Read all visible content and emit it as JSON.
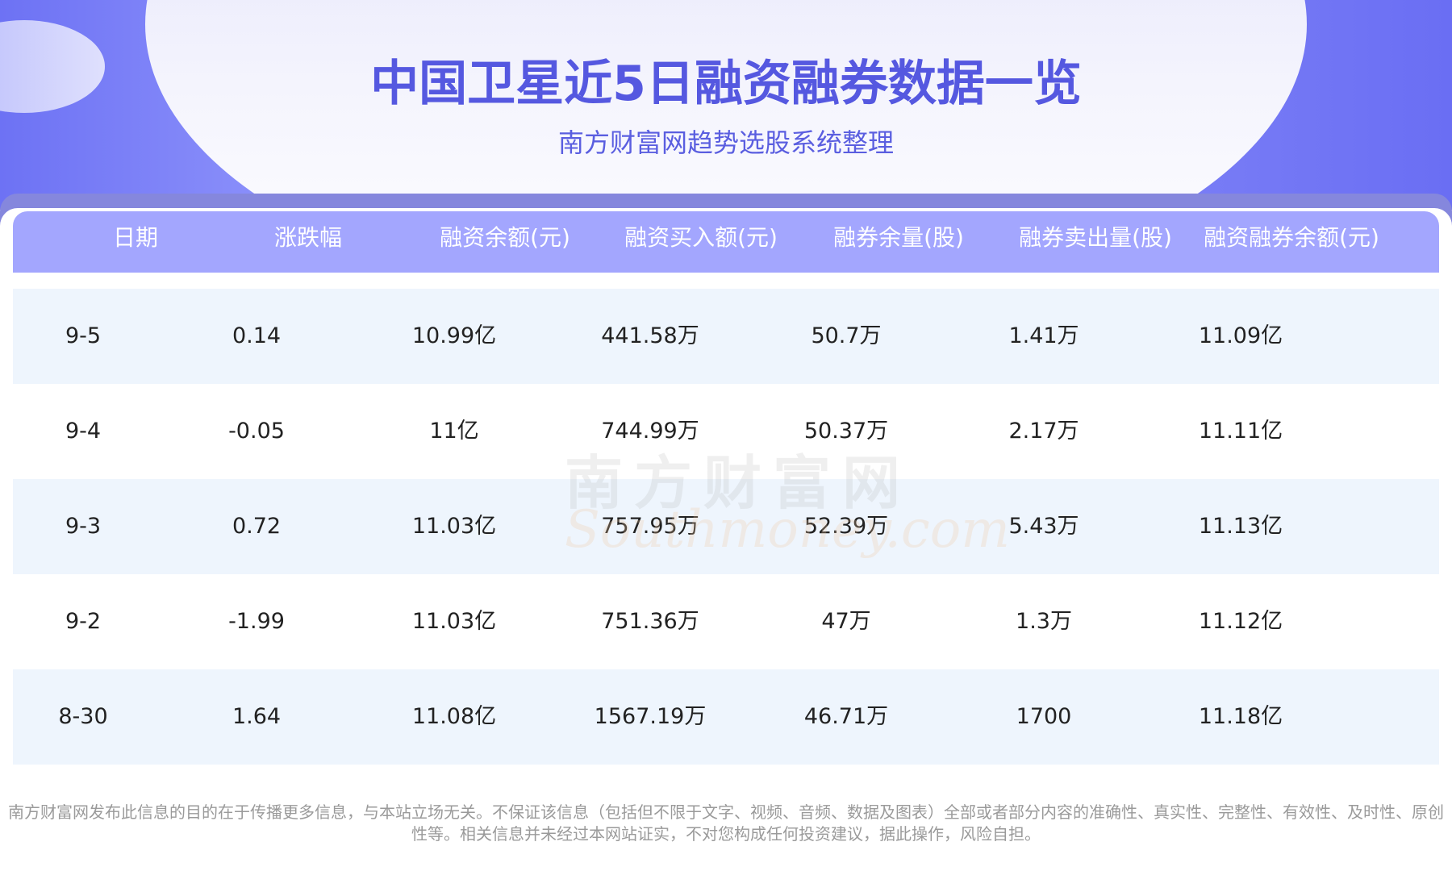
{
  "title": "中国卫星近5日融资融券数据一览",
  "subtitle": "南方财富网趋势选股系统整理",
  "watermark": {
    "cn": "南方财富网",
    "en": "Southmoney.com"
  },
  "colors": {
    "accent": "#5558e0",
    "header_bg": "#a3a6fe",
    "alt_row": "#eef5fd",
    "hero_bg": "#6d72f4"
  },
  "table": {
    "headers": [
      "日期",
      "涨跌幅",
      "融资余额(元)",
      "融资买入额(元)",
      "融券余量(股)",
      "融券卖出量(股)",
      "融资融券余额(元)"
    ],
    "rows": [
      [
        "9-5",
        "0.14",
        "10.99亿",
        "441.58万",
        "50.7万",
        "1.41万",
        "11.09亿"
      ],
      [
        "9-4",
        "-0.05",
        "11亿",
        "744.99万",
        "50.37万",
        "2.17万",
        "11.11亿"
      ],
      [
        "9-3",
        "0.72",
        "11.03亿",
        "757.95万",
        "52.39万",
        "5.43万",
        "11.13亿"
      ],
      [
        "9-2",
        "-1.99",
        "11.03亿",
        "751.36万",
        "47万",
        "1.3万",
        "11.12亿"
      ],
      [
        "8-30",
        "1.64",
        "11.08亿",
        "1567.19万",
        "46.71万",
        "1700",
        "11.18亿"
      ]
    ]
  },
  "disclaimer": "南方财富网发布此信息的目的在于传播更多信息，与本站立场无关。不保证该信息（包括但不限于文字、视频、音频、数据及图表）全部或者部分内容的准确性、真实性、完整性、有效性、及时性、原创性等。相关信息并未经过本网站证实，不对您构成任何投资建议，据此操作，风险自担。"
}
